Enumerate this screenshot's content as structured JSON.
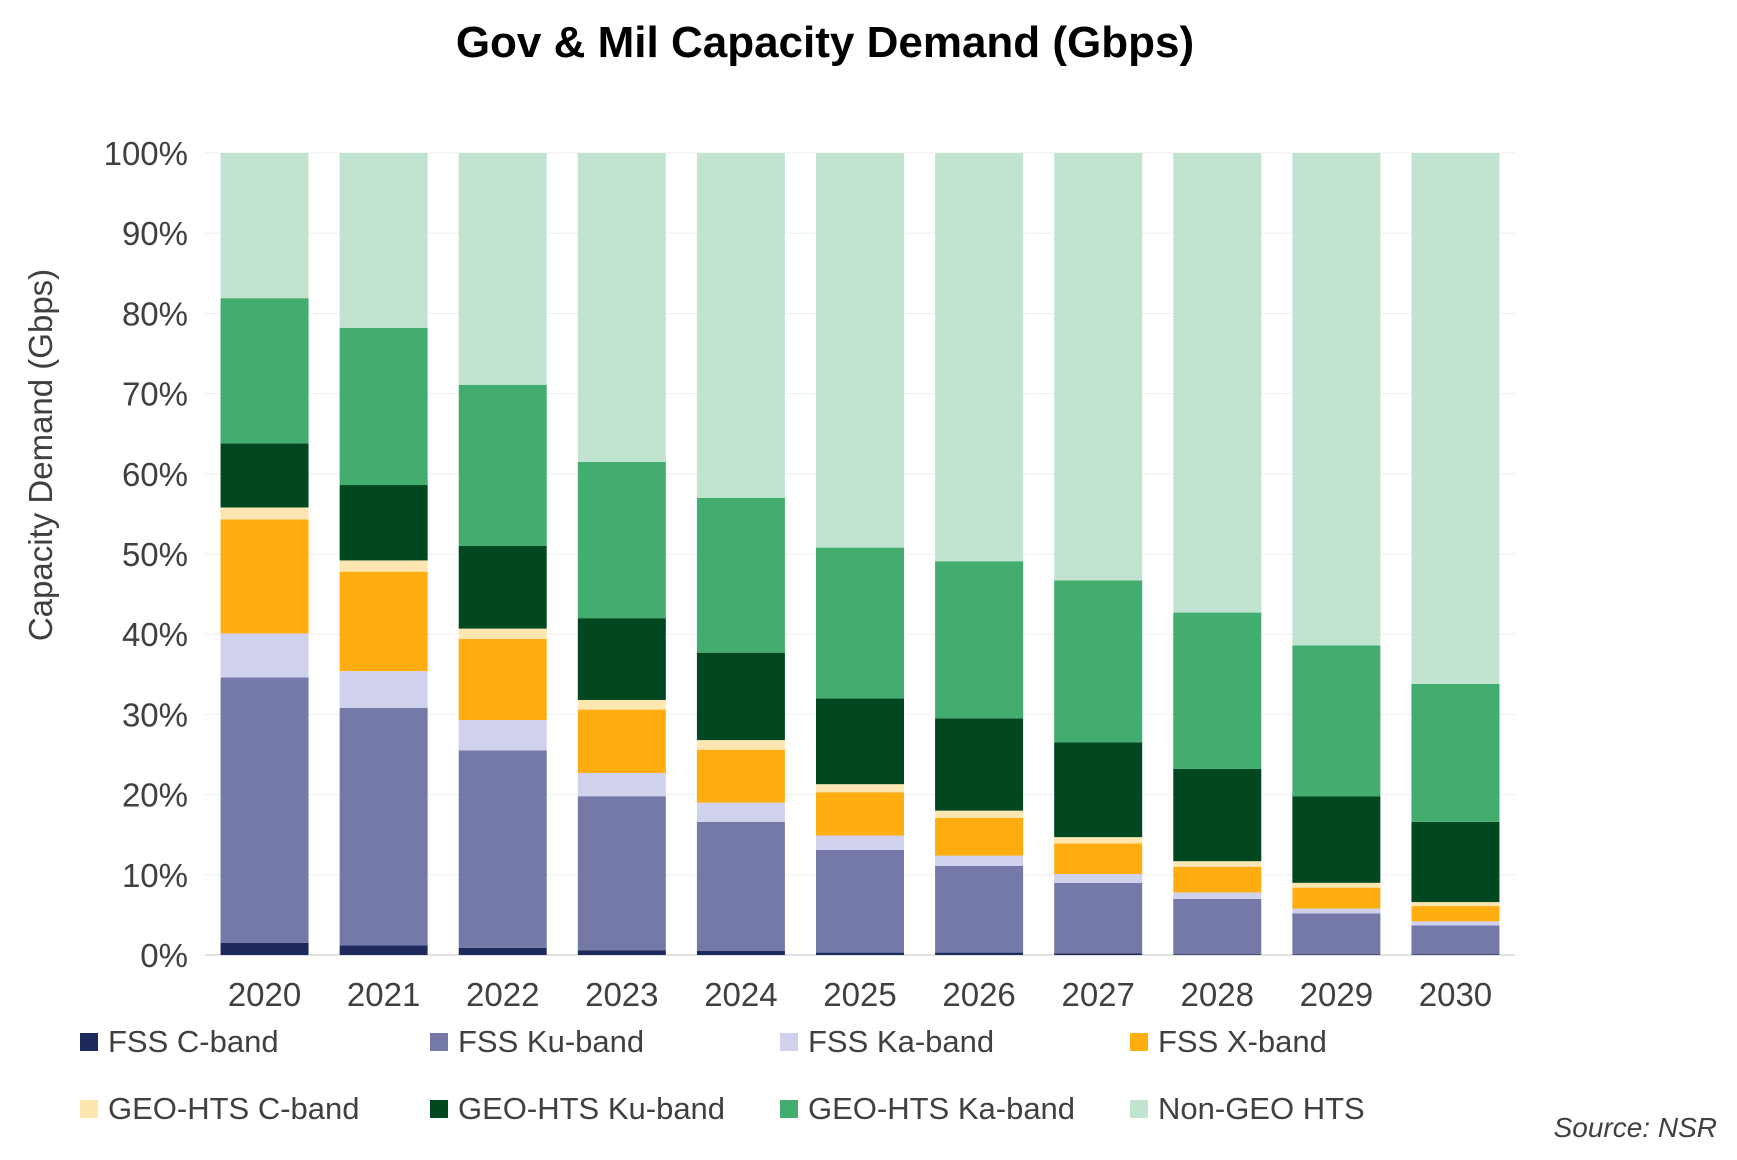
{
  "chart_data": {
    "type": "bar",
    "stacked": true,
    "title": "Gov & Mil Capacity Demand (Gbps)",
    "xlabel": "",
    "ylabel": "Capacity Demand (Gbps)",
    "ylim": [
      0,
      100
    ],
    "yticks": [
      "0%",
      "10%",
      "20%",
      "30%",
      "40%",
      "50%",
      "60%",
      "70%",
      "80%",
      "90%",
      "100%"
    ],
    "grid": true,
    "legend_position": "bottom",
    "categories": [
      "2020",
      "2021",
      "2022",
      "2023",
      "2024",
      "2025",
      "2026",
      "2027",
      "2028",
      "2029",
      "2030"
    ],
    "series": [
      {
        "name": "FSS C-band",
        "color": "#1f2a5c",
        "values": [
          1.5,
          1.2,
          0.9,
          0.6,
          0.5,
          0.3,
          0.3,
          0.2,
          0.1,
          0.1,
          0.1
        ]
      },
      {
        "name": "FSS Ku-band",
        "color": "#7479a8",
        "values": [
          33.1,
          29.6,
          24.6,
          19.2,
          16.1,
          12.8,
          10.8,
          8.8,
          6.9,
          5.1,
          3.6
        ]
      },
      {
        "name": "FSS Ka-band",
        "color": "#d0d1ec",
        "values": [
          5.5,
          4.6,
          3.8,
          2.9,
          2.4,
          1.8,
          1.3,
          1.1,
          0.8,
          0.6,
          0.5
        ]
      },
      {
        "name": "FSS X-band",
        "color": "#ffad0f",
        "values": [
          14.2,
          12.4,
          10.1,
          7.9,
          6.6,
          5.4,
          4.7,
          3.8,
          3.2,
          2.6,
          1.9
        ]
      },
      {
        "name": "GEO-HTS C-band",
        "color": "#fde6b0",
        "values": [
          1.5,
          1.4,
          1.3,
          1.2,
          1.2,
          1.0,
          0.9,
          0.8,
          0.7,
          0.6,
          0.5
        ]
      },
      {
        "name": "GEO-HTS Ku-band",
        "color": "#014821",
        "values": [
          8.0,
          9.4,
          10.3,
          10.2,
          10.9,
          10.7,
          11.5,
          11.8,
          11.5,
          10.8,
          10.0
        ]
      },
      {
        "name": "GEO-HTS Ka-band",
        "color": "#42ad6f",
        "values": [
          18.1,
          19.6,
          20.1,
          19.5,
          19.3,
          18.8,
          19.6,
          20.2,
          19.5,
          18.8,
          17.2
        ]
      },
      {
        "name": "Non-GEO HTS",
        "color": "#c1e4d1",
        "values": [
          18.1,
          21.8,
          28.9,
          38.5,
          43.0,
          49.2,
          50.9,
          53.3,
          57.3,
          61.4,
          66.2
        ]
      }
    ]
  },
  "source": "Source: NSR"
}
